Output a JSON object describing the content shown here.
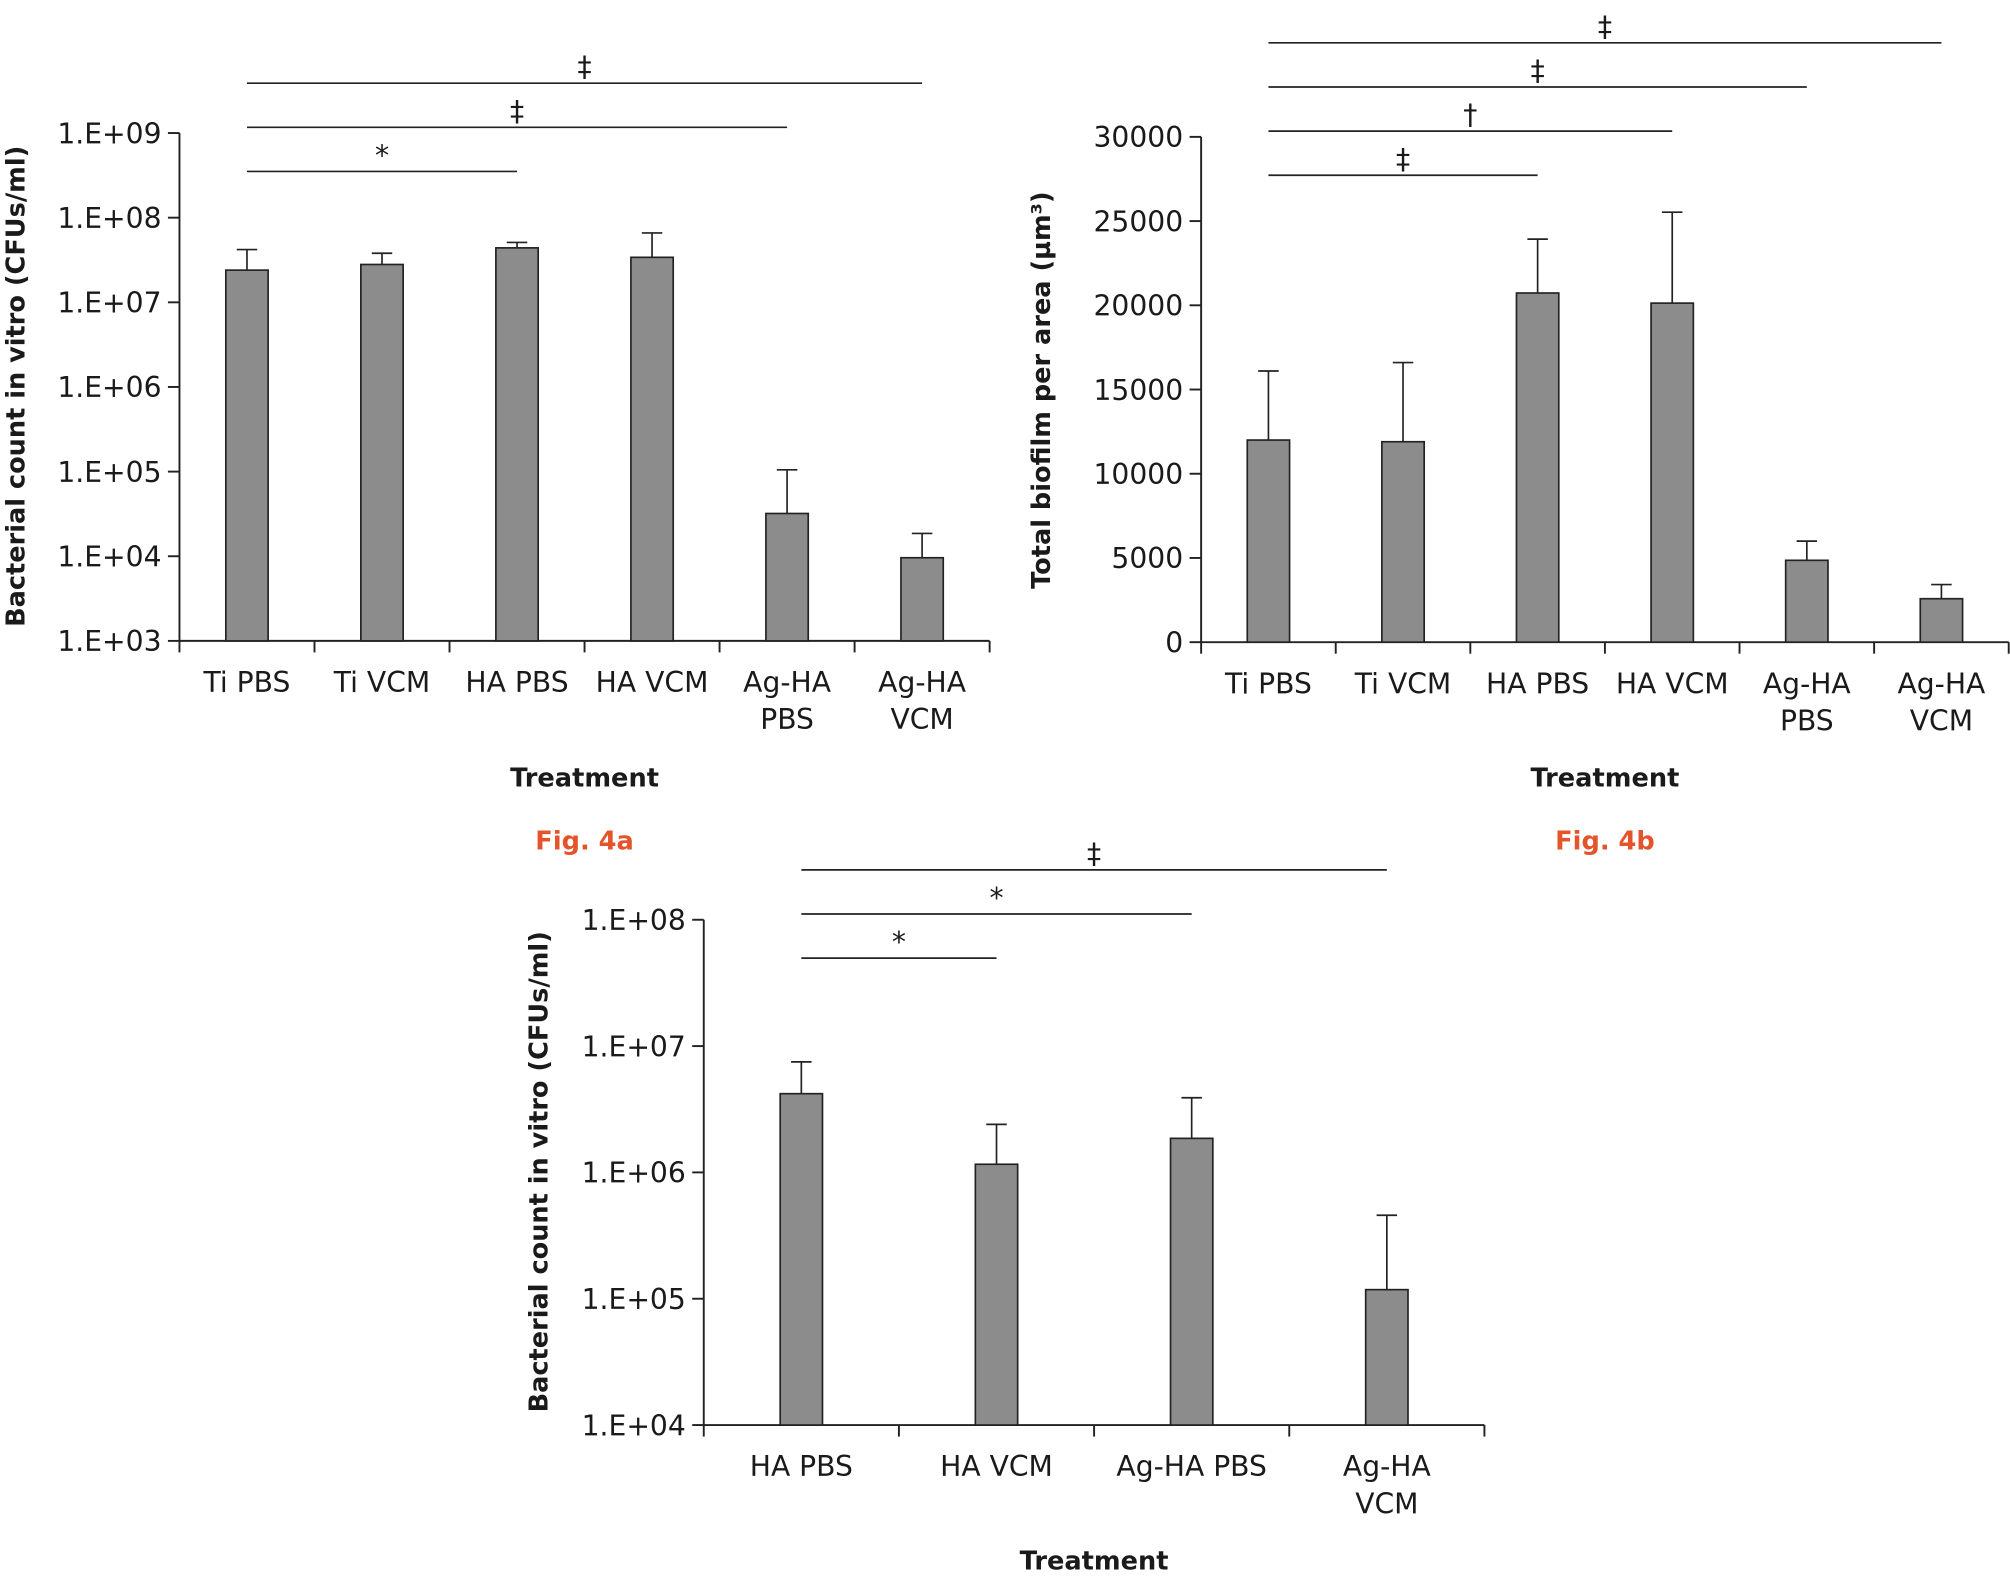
{
  "chart_data": [
    {
      "type": "bar",
      "log_scale": true,
      "color": "#8c8c8c",
      "y_label": "Bacterial count in vitro (CFUs/ml)",
      "x_label": "Treatment",
      "caption": "Fig. 4a",
      "categories": [
        "Ti PBS",
        "Ti VCM",
        "HA PBS",
        "HA VCM",
        "Ag-HA\nPBS",
        "Ag-HA\nVCM"
      ],
      "values": [
        24000000,
        28000000,
        44000000,
        34000000,
        32000,
        9600
      ],
      "errors": [
        18000000,
        10000000,
        7000000,
        32000000,
        73000,
        9000
      ],
      "ylim": [
        1000,
        1000000000
      ],
      "yticks": [
        {
          "value": 1000,
          "label": "1.E+03"
        },
        {
          "value": 10000,
          "label": "1.E+04"
        },
        {
          "value": 100000,
          "label": "1.E+05"
        },
        {
          "value": 1000000,
          "label": "1.E+06"
        },
        {
          "value": 10000000,
          "label": "1.E+07"
        },
        {
          "value": 100000000,
          "label": "1.E+08"
        },
        {
          "value": 1000000000,
          "label": "1.E+09"
        }
      ],
      "brackets": [
        {
          "from": 0,
          "to": 2,
          "label": "*"
        },
        {
          "from": 0,
          "to": 4,
          "label": "‡"
        },
        {
          "from": 0,
          "to": 5,
          "label": "‡"
        }
      ]
    },
    {
      "type": "bar",
      "log_scale": false,
      "color": "#8c8c8c",
      "y_label": "Total biofilm per area (µm³)",
      "x_label": "Treatment",
      "caption": "Fig. 4b",
      "categories": [
        "Ti PBS",
        "Ti VCM",
        "HA PBS",
        "HA VCM",
        "Ag-HA\nPBS",
        "Ag-HA\nVCM"
      ],
      "values": [
        12000,
        11900,
        20730,
        20130,
        4860,
        2580
      ],
      "errors": [
        4100,
        4700,
        3200,
        5400,
        1140,
        840
      ],
      "ylim": [
        0,
        30000
      ],
      "yticks": [
        0,
        5000,
        10000,
        15000,
        20000,
        25000,
        30000
      ],
      "brackets": [
        {
          "from": 0,
          "to": 2,
          "label": "‡"
        },
        {
          "from": 0,
          "to": 3,
          "label": "†"
        },
        {
          "from": 0,
          "to": 4,
          "label": "‡"
        },
        {
          "from": 0,
          "to": 5,
          "label": "‡"
        }
      ]
    },
    {
      "type": "bar",
      "log_scale": true,
      "color": "#8c8c8c",
      "y_label": "Bacterial count in vitro (CFUs/ml)",
      "x_label": "Treatment",
      "categories": [
        "HA PBS",
        "HA VCM",
        "Ag-HA PBS",
        "Ag-HA\nVCM"
      ],
      "values": [
        4200000,
        1160000,
        1860000,
        118000
      ],
      "errors": [
        3300000,
        1240000,
        2040000,
        340000
      ],
      "ylim": [
        10000,
        100000000
      ],
      "yticks": [
        {
          "value": 10000,
          "label": "1.E+04"
        },
        {
          "value": 100000,
          "label": "1.E+05"
        },
        {
          "value": 1000000,
          "label": "1.E+06"
        },
        {
          "value": 10000000,
          "label": "1.E+07"
        },
        {
          "value": 100000000,
          "label": "1.E+08"
        }
      ],
      "brackets": [
        {
          "from": 0,
          "to": 1,
          "label": "*"
        },
        {
          "from": 0,
          "to": 2,
          "label": "*"
        },
        {
          "from": 0,
          "to": 3,
          "label": "‡"
        }
      ]
    }
  ]
}
